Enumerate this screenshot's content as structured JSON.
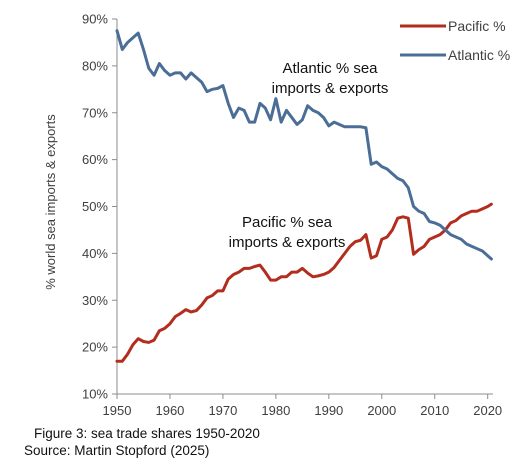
{
  "caption": {
    "line1": "Figure 3: sea trade  shares 1950-2020",
    "line2": "Source: Martin Stopford (2025)"
  },
  "chart_data": {
    "type": "line",
    "title": "",
    "xlabel": "",
    "ylabel": "% world sea imports & exports",
    "xlim": [
      1950,
      2021
    ],
    "ylim": [
      10,
      90
    ],
    "x_ticks": [
      "1950",
      "1960",
      "1970",
      "1980",
      "1990",
      "2000",
      "2010",
      "2020"
    ],
    "y_ticks": [
      "10%",
      "20%",
      "30%",
      "40%",
      "50%",
      "60%",
      "70%",
      "80%",
      "90%"
    ],
    "grid": false,
    "legend": "top-right",
    "annotations": {
      "atlantic": [
        "Atlantic % sea",
        "imports & exports"
      ],
      "pacific": [
        "Pacific  % sea",
        "imports & exports"
      ]
    },
    "series": [
      {
        "name": "Pacific %",
        "color": "#b32d1e",
        "x": [
          1950,
          1951,
          1952,
          1953,
          1954,
          1955,
          1956,
          1957,
          1958,
          1959,
          1960,
          1961,
          1962,
          1963,
          1964,
          1965,
          1966,
          1967,
          1968,
          1969,
          1970,
          1971,
          1972,
          1973,
          1974,
          1975,
          1976,
          1977,
          1978,
          1979,
          1980,
          1981,
          1982,
          1983,
          1984,
          1985,
          1986,
          1987,
          1988,
          1989,
          1990,
          1991,
          1992,
          1993,
          1994,
          1995,
          1996,
          1997,
          1998,
          1999,
          2000,
          2001,
          2002,
          2003,
          2004,
          2005,
          2006,
          2007,
          2008,
          2009,
          2010,
          2011,
          2012,
          2013,
          2014,
          2015,
          2016,
          2017,
          2018,
          2019,
          2020,
          2020.7
        ],
        "values": [
          17,
          17,
          18.5,
          20.5,
          21.8,
          21.2,
          21,
          21.5,
          23.5,
          24,
          25,
          26.5,
          27.2,
          28,
          27.5,
          27.8,
          29,
          30.5,
          31,
          32,
          32,
          34.5,
          35.5,
          36,
          36.8,
          36.8,
          37.2,
          37.5,
          36,
          34.3,
          34.3,
          35,
          35,
          36,
          36,
          36.8,
          35.8,
          35,
          35.2,
          35.5,
          36,
          37,
          38.5,
          40,
          41.5,
          42.5,
          42.8,
          44,
          39,
          39.5,
          43,
          43.5,
          45,
          47.5,
          47.8,
          47.5,
          39.8,
          40.8,
          41.5,
          43,
          43.5,
          44,
          45,
          46.5,
          47,
          48,
          48.5,
          49,
          49,
          49.5,
          50,
          50.5
        ]
      },
      {
        "name": "Atlantic %",
        "color": "#4a6e96",
        "x": [
          1950,
          1951,
          1952,
          1953,
          1954,
          1955,
          1956,
          1957,
          1958,
          1959,
          1960,
          1961,
          1962,
          1963,
          1964,
          1965,
          1966,
          1967,
          1968,
          1969,
          1970,
          1971,
          1972,
          1973,
          1974,
          1975,
          1976,
          1977,
          1978,
          1979,
          1980,
          1981,
          1982,
          1983,
          1984,
          1985,
          1986,
          1987,
          1988,
          1989,
          1990,
          1991,
          1992,
          1993,
          1994,
          1995,
          1996,
          1997,
          1998,
          1999,
          2000,
          2001,
          2002,
          2003,
          2004,
          2005,
          2006,
          2007,
          2008,
          2009,
          2010,
          2011,
          2012,
          2013,
          2014,
          2015,
          2016,
          2017,
          2018,
          2019,
          2020,
          2020.7
        ],
        "values": [
          87.5,
          83.5,
          85,
          86,
          87,
          83.5,
          79.5,
          78,
          80.5,
          79,
          78,
          78.5,
          78.5,
          77.2,
          78.5,
          77.5,
          76.5,
          74.5,
          75,
          75.2,
          75.8,
          72,
          69,
          71,
          70.5,
          68,
          68,
          72,
          71,
          68.5,
          73,
          68,
          70.5,
          69,
          67.5,
          68.5,
          71.5,
          70.5,
          70,
          69,
          67.2,
          68,
          67.5,
          67,
          67,
          67,
          67,
          66.8,
          59,
          59.5,
          58.5,
          58,
          57,
          56,
          55.5,
          54,
          50,
          49,
          48.5,
          46.8,
          46.5,
          46,
          45,
          44,
          43.5,
          43,
          42,
          41.5,
          41,
          40.5,
          39.5,
          38.8
        ]
      }
    ]
  }
}
